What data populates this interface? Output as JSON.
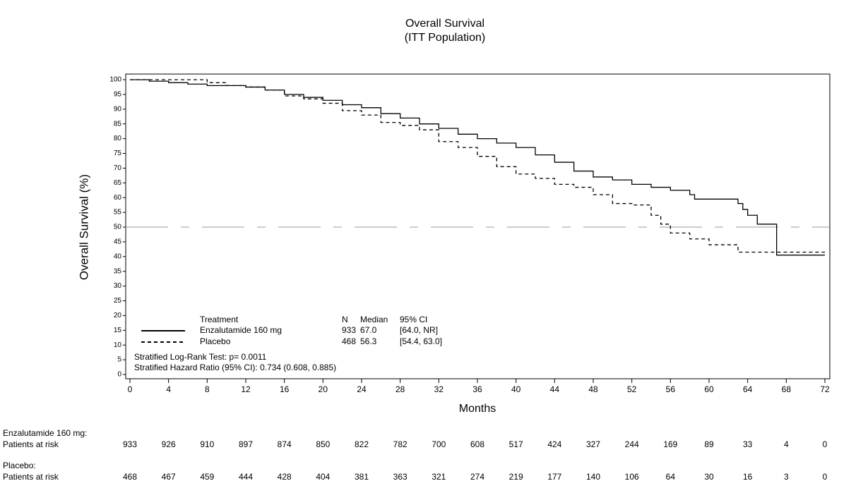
{
  "chart_data": {
    "type": "step",
    "title": "Overall Survival",
    "subtitle": "(ITT Population)",
    "xlabel": "Months",
    "ylabel": "Overall Survival (%)",
    "xlim": [
      0,
      72
    ],
    "ylim": [
      0,
      100
    ],
    "xticks": [
      0,
      4,
      8,
      12,
      16,
      20,
      24,
      28,
      32,
      36,
      40,
      44,
      48,
      52,
      56,
      60,
      64,
      68,
      72
    ],
    "yticks": [
      0,
      5,
      10,
      15,
      20,
      25,
      30,
      35,
      40,
      45,
      50,
      55,
      60,
      65,
      70,
      75,
      80,
      85,
      90,
      95,
      100
    ],
    "reference_line": 50,
    "series": [
      {
        "name": "Enzalutamide 160 mg",
        "color": "#000000",
        "dash": "solid",
        "x": [
          0,
          2,
          4,
          6,
          8,
          10,
          12,
          14,
          16,
          18,
          20,
          22,
          24,
          26,
          28,
          30,
          32,
          34,
          36,
          38,
          40,
          42,
          44,
          46,
          48,
          50,
          52,
          54,
          56,
          58,
          58.5,
          62,
          63,
          63.5,
          64,
          65,
          67,
          72
        ],
        "values": [
          100,
          99.5,
          99,
          98.5,
          98,
          98,
          97.5,
          96.5,
          95,
          94,
          93,
          91.5,
          90.5,
          88.5,
          87,
          85,
          83.5,
          81.5,
          80,
          78.5,
          77,
          74.5,
          72,
          69,
          67,
          66,
          64.5,
          63.5,
          62.5,
          61,
          59.5,
          59.5,
          58,
          56,
          54,
          51,
          40.5,
          40.5
        ]
      },
      {
        "name": "Placebo",
        "color": "#000000",
        "dash": "dashed",
        "x": [
          0,
          8,
          10,
          12,
          14,
          16,
          18,
          20,
          22,
          24,
          26,
          28,
          30,
          32,
          34,
          36,
          38,
          40,
          42,
          44,
          46,
          48,
          50,
          52,
          54,
          55,
          56,
          58,
          60,
          62,
          63,
          72
        ],
        "values": [
          100,
          99,
          98,
          97.5,
          96.5,
          94.5,
          93.5,
          92,
          89.5,
          88,
          85.5,
          84.5,
          83,
          79,
          77,
          74,
          70.5,
          68,
          66.5,
          64.5,
          63.5,
          61,
          58,
          57.5,
          54,
          51,
          48,
          46,
          44,
          44,
          41.5,
          41.5
        ]
      }
    ],
    "legend_table": {
      "headers": [
        "Treatment",
        "N",
        "Median",
        "95% CI"
      ],
      "rows": [
        [
          "Enzalutamide 160 mg",
          "933",
          "67.0",
          "[64.0, NR]"
        ],
        [
          "Placebo",
          "468",
          "56.3",
          "[54.4, 63.0]"
        ]
      ]
    },
    "annotations": [
      "Stratified Log-Rank Test: p= 0.0011",
      "Stratified Hazard Ratio (95% CI): 0.734 (0.608, 0.885)"
    ],
    "risk_table": [
      {
        "group": "Enzalutamide 160 mg:",
        "label": "Patients at risk",
        "values": [
          933,
          926,
          910,
          897,
          874,
          850,
          822,
          782,
          700,
          608,
          517,
          424,
          327,
          244,
          169,
          89,
          33,
          4,
          0
        ]
      },
      {
        "group": "Placebo:",
        "label": "Patients at risk",
        "values": [
          468,
          467,
          459,
          444,
          428,
          404,
          381,
          363,
          321,
          274,
          219,
          177,
          140,
          106,
          64,
          30,
          16,
          3,
          0
        ]
      }
    ]
  }
}
